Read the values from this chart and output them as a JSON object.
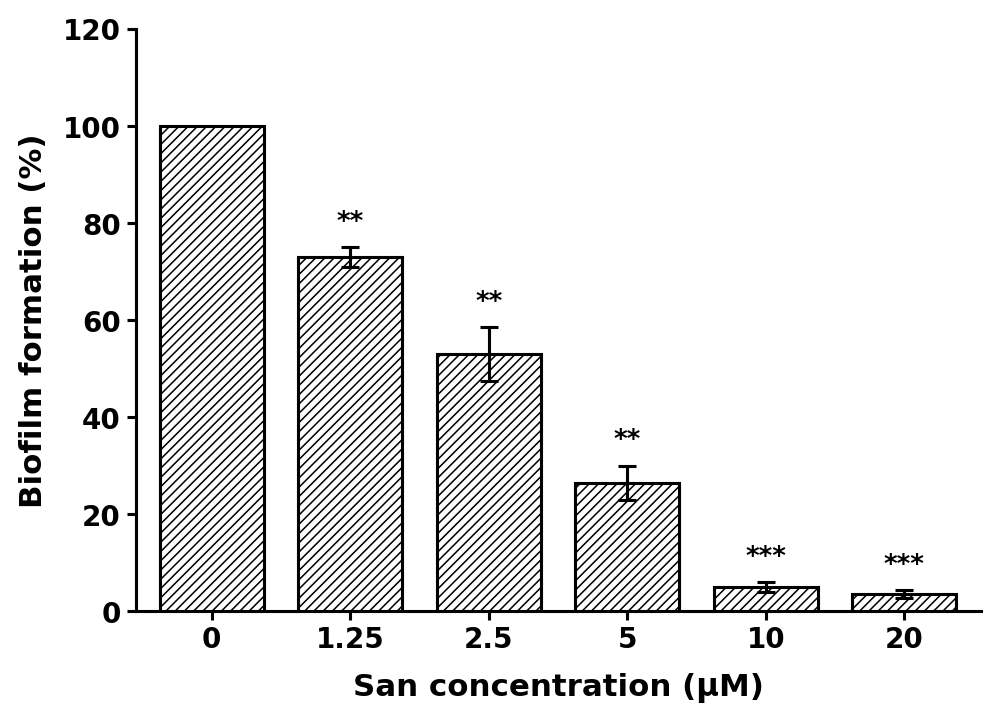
{
  "categories": [
    "0",
    "1.25",
    "2.5",
    "5",
    "10",
    "20"
  ],
  "values": [
    100.0,
    73.0,
    53.0,
    26.5,
    5.0,
    3.5
  ],
  "errors": [
    0.0,
    2.0,
    5.5,
    3.5,
    1.0,
    0.8
  ],
  "significance": [
    "",
    "**",
    "**",
    "**",
    "***",
    "***"
  ],
  "xlabel": "San concentration (μM)",
  "ylabel": "Biofilm formation (%)",
  "ylim": [
    0,
    120
  ],
  "yticks": [
    0,
    20,
    40,
    60,
    80,
    100,
    120
  ],
  "ytick_labels": [
    "0",
    "20",
    "40",
    "60",
    "80",
    "100",
    "120"
  ],
  "bar_color": "#ffffff",
  "bar_edgecolor": "#000000",
  "hatch_pattern": "////",
  "background_color": "#ffffff",
  "bar_width": 0.75,
  "xlabel_fontsize": 20,
  "ylabel_fontsize": 20,
  "tick_fontsize": 18,
  "sig_fontsize": 17
}
